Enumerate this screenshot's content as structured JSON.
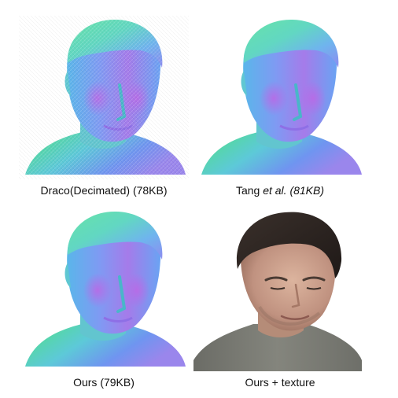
{
  "figure": {
    "panels": [
      {
        "caption_parts": [
          "Draco(Decimated) (78KB)"
        ],
        "rendering": "normal-map",
        "surface": "faceted"
      },
      {
        "caption_parts": [
          "Tang ",
          "et al.",
          " (81KB)"
        ],
        "rendering": "normal-map",
        "surface": "smooth"
      },
      {
        "caption_parts": [
          "Ours (79KB)"
        ],
        "rendering": "normal-map",
        "surface": "smooth"
      },
      {
        "caption_parts": [
          "Ours + texture"
        ],
        "rendering": "textured-photo",
        "surface": "smooth"
      }
    ],
    "colors": {
      "normal_green": "#58e06a",
      "normal_cyan": "#59d2d6",
      "normal_blue": "#6a8ef2",
      "normal_violet": "#a671ea",
      "skin": "#c9a08a",
      "hair": "#2b2421",
      "shirt": "#7a7b73"
    }
  }
}
